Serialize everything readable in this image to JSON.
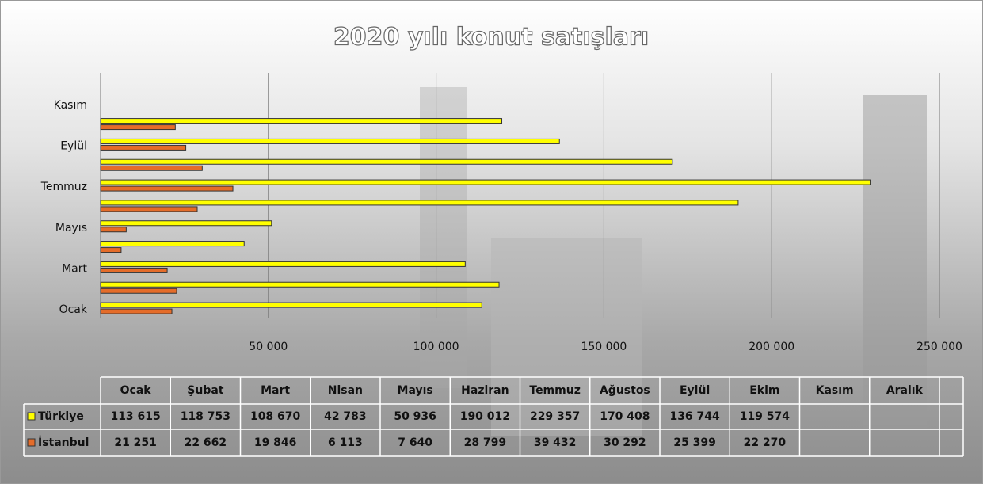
{
  "chart_data": {
    "type": "bar",
    "orientation": "horizontal",
    "title": "2020 yılı konut satışları",
    "categories": [
      "Ocak",
      "Şubat",
      "Mart",
      "Nisan",
      "Mayıs",
      "Haziran",
      "Temmuz",
      "Ağustos",
      "Eylül",
      "Ekim",
      "Kasım",
      "Aralık"
    ],
    "series": [
      {
        "name": "Türkiye",
        "color": "#ffff00",
        "values": [
          113615,
          118753,
          108670,
          42783,
          50936,
          190012,
          229357,
          170408,
          136744,
          119574,
          null,
          null
        ],
        "value_labels": [
          "113 615",
          "118 753",
          "108 670",
          "42 783",
          "50 936",
          "190 012",
          "229 357",
          "170 408",
          "136 744",
          "119 574",
          null,
          null
        ]
      },
      {
        "name": "İstanbul",
        "color": "#e46c2a",
        "values": [
          21251,
          22662,
          19846,
          6113,
          7640,
          28799,
          39432,
          30292,
          25399,
          22270,
          null,
          null
        ],
        "value_labels": [
          "21 251",
          "22 662",
          "19 846",
          "6 113",
          "7 640",
          "28 799",
          "39 432",
          "30 292",
          "25 399",
          "22 270",
          null,
          null
        ]
      }
    ],
    "xlim": [
      0,
      250000
    ],
    "xticks": [
      {
        "value": 50000,
        "label": "50 000"
      },
      {
        "value": 100000,
        "label": "100 000"
      },
      {
        "value": 150000,
        "label": "150 000"
      },
      {
        "value": 200000,
        "label": "200 000"
      },
      {
        "value": 250000,
        "label": "250 000"
      }
    ],
    "grid": true
  }
}
